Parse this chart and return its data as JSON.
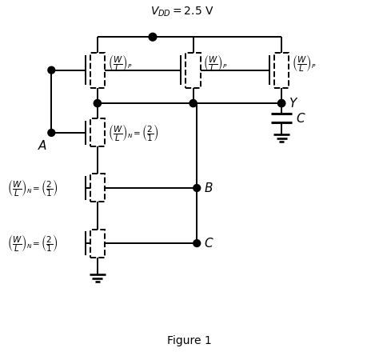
{
  "bg_color": "#ffffff",
  "lw": 1.4,
  "fig_label": "Figure 1",
  "vdd_label": "$V_{DD} = 2.5$ V",
  "wl_p": "$\\left(\\dfrac{W}{L}\\right)_P$",
  "wl_n": "$\\left(\\dfrac{W}{L}\\right)_N$",
  "wl_21": "$\\left(\\dfrac{2}{1}\\right)$",
  "wl_n_21": "$\\left(\\dfrac{W}{L}\\right)_N = \\left(\\dfrac{2}{1}\\right)$"
}
